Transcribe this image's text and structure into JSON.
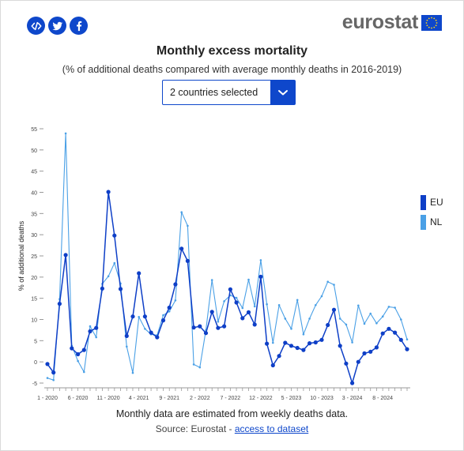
{
  "share": [
    {
      "name": "embed-icon"
    },
    {
      "name": "twitter-icon"
    },
    {
      "name": "facebook-icon"
    }
  ],
  "logo": {
    "text": "eurostat"
  },
  "header": {
    "title": "Monthly excess mortality",
    "subtitle": "(% of additional deaths compared with average monthly deaths in 2016-2019)"
  },
  "selector": {
    "value": "2 countries selected"
  },
  "legend": [
    {
      "label": "EU",
      "color": "#0e3fc7"
    },
    {
      "label": "NL",
      "color": "#4aa0e6"
    }
  ],
  "footer": {
    "note": "Monthly data are estimated from weekly deaths data.",
    "source_prefix": "Source: Eurostat - ",
    "source_link": "access to dataset"
  },
  "chart_data": {
    "type": "line",
    "ylabel": "% of additional deaths",
    "xlabel": "",
    "ylim": [
      -5,
      55
    ],
    "yticks": [
      -5,
      0,
      5,
      10,
      15,
      20,
      25,
      30,
      35,
      40,
      45,
      50,
      55
    ],
    "x_tick_labels": [
      {
        "index": 0,
        "label": "1 - 2020"
      },
      {
        "index": 5,
        "label": "6 - 2020"
      },
      {
        "index": 10,
        "label": "11 - 2020"
      },
      {
        "index": 15,
        "label": "4 - 2021"
      },
      {
        "index": 20,
        "label": "9 - 2021"
      },
      {
        "index": 25,
        "label": "2 - 2022"
      },
      {
        "index": 30,
        "label": "7 - 2022"
      },
      {
        "index": 35,
        "label": "12 - 2022"
      },
      {
        "index": 40,
        "label": "5 - 2023"
      },
      {
        "index": 45,
        "label": "10 - 2023"
      },
      {
        "index": 50,
        "label": "3 - 2024"
      },
      {
        "index": 55,
        "label": "8 - 2024"
      }
    ],
    "series": [
      {
        "name": "EU",
        "values": [
          -0.5,
          -2.5,
          13.7,
          25.2,
          3.2,
          1.8,
          2.8,
          7.2,
          8.0,
          17.3,
          40.1,
          29.8,
          17.2,
          6.1,
          10.7,
          20.9,
          10.7,
          6.9,
          5.8,
          9.8,
          12.8,
          18.3,
          26.7,
          23.8,
          8.1,
          8.4,
          6.8,
          11.8,
          8.0,
          8.4,
          17.1,
          14.0,
          10.3,
          11.7,
          8.8,
          20.1,
          4.3,
          -0.8,
          1.4,
          4.5,
          3.8,
          3.3,
          2.8,
          4.4,
          4.6,
          5.2,
          8.7,
          12.3,
          3.8,
          -0.4,
          -5.0,
          0.0,
          2.0,
          2.4,
          3.4,
          6.7,
          7.8,
          6.9,
          5.2,
          3.0
        ]
      },
      {
        "name": "NL",
        "values": [
          -3.8,
          -4.3,
          14.8,
          53.9,
          3.8,
          0.2,
          -2.4,
          8.4,
          5.8,
          18.4,
          20.2,
          23.3,
          18.5,
          3.6,
          -2.6,
          10.6,
          7.8,
          6.5,
          6.3,
          11.0,
          11.9,
          14.5,
          35.3,
          32.1,
          -0.6,
          -1.3,
          7.5,
          19.3,
          9.5,
          14.3,
          15.7,
          15.1,
          12.7,
          19.4,
          13.1,
          24.0,
          13.6,
          4.5,
          13.4,
          10.2,
          7.8,
          14.6,
          6.5,
          10.2,
          13.4,
          15.5,
          18.9,
          18.2,
          10.2,
          8.8,
          4.6,
          13.3,
          9.0,
          11.4,
          9.1,
          10.7,
          13.0,
          12.8,
          10.0,
          5.3
        ]
      }
    ]
  }
}
